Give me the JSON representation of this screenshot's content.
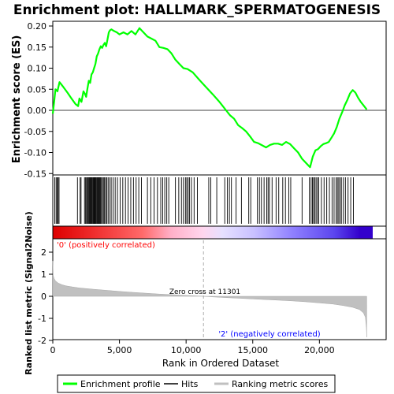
{
  "chart_data": [
    {
      "type": "line",
      "title": "Enrichment plot: HALLMARK_SPERMATOGENESIS",
      "ylabel": "Enrichment score (ES)",
      "ylim": [
        -0.15,
        0.21
      ],
      "yticks": [
        0.2,
        0.15,
        0.1,
        0.05,
        0.0,
        -0.05,
        -0.1,
        -0.15
      ],
      "ytick_labels": [
        "0.20",
        "0.15",
        "0.10",
        "0.05",
        "0.00",
        "-0.05",
        "-0.10",
        "-0.15"
      ],
      "xlim": [
        0,
        24000
      ],
      "series": [
        {
          "name": "Enrichment profile",
          "color": "#00ff00",
          "x": [
            0,
            100,
            200,
            350,
            500,
            800,
            1100,
            1400,
            1700,
            1900,
            2000,
            2150,
            2300,
            2400,
            2500,
            2600,
            2700,
            2800,
            2900,
            3000,
            3100,
            3200,
            3300,
            3400,
            3500,
            3600,
            3700,
            3800,
            3900,
            4000,
            4100,
            4200,
            4300,
            4400,
            4600,
            4800,
            5000,
            5300,
            5600,
            5900,
            6200,
            6500,
            6800,
            7100,
            7400,
            7700,
            8000,
            8300,
            8600,
            8900,
            9200,
            9500,
            9800,
            10100,
            10500,
            11000,
            11500,
            12000,
            12500,
            13000,
            13300,
            13600,
            13900,
            14200,
            14500,
            14800,
            15100,
            15400,
            15700,
            16000,
            16300,
            16600,
            16900,
            17200,
            17500,
            17800,
            18100,
            18400,
            18700,
            19000,
            19300,
            19500,
            19700,
            19900,
            20100,
            20300,
            20500,
            20700,
            20900,
            21100,
            21300,
            21500,
            21700,
            21900,
            22100,
            22300,
            22500,
            22700,
            22900,
            23100,
            23300,
            23550
          ],
          "y": [
            -0.008,
            0.02,
            0.05,
            0.045,
            0.067,
            0.055,
            0.042,
            0.028,
            0.015,
            0.01,
            0.028,
            0.02,
            0.045,
            0.04,
            0.032,
            0.052,
            0.07,
            0.065,
            0.085,
            0.09,
            0.1,
            0.11,
            0.128,
            0.135,
            0.145,
            0.152,
            0.148,
            0.155,
            0.16,
            0.152,
            0.168,
            0.185,
            0.19,
            0.192,
            0.188,
            0.185,
            0.18,
            0.185,
            0.18,
            0.188,
            0.18,
            0.195,
            0.185,
            0.175,
            0.17,
            0.165,
            0.15,
            0.148,
            0.145,
            0.135,
            0.12,
            0.11,
            0.1,
            0.098,
            0.09,
            0.072,
            0.055,
            0.038,
            0.02,
            0.0,
            -0.012,
            -0.02,
            -0.035,
            -0.042,
            -0.05,
            -0.062,
            -0.075,
            -0.078,
            -0.083,
            -0.088,
            -0.082,
            -0.079,
            -0.079,
            -0.082,
            -0.075,
            -0.08,
            -0.09,
            -0.1,
            -0.115,
            -0.125,
            -0.135,
            -0.11,
            -0.095,
            -0.092,
            -0.085,
            -0.08,
            -0.078,
            -0.075,
            -0.065,
            -0.055,
            -0.04,
            -0.02,
            -0.005,
            0.012,
            0.025,
            0.04,
            0.048,
            0.042,
            0.03,
            0.02,
            0.012,
            0.002
          ]
        }
      ]
    },
    {
      "type": "barcode",
      "name": "Hits",
      "hit_positions": [
        150,
        250,
        330,
        400,
        470,
        1850,
        2050,
        2120,
        2380,
        2460,
        2530,
        2590,
        2650,
        2710,
        2760,
        2810,
        2870,
        2920,
        2970,
        3030,
        3080,
        3130,
        3190,
        3240,
        3300,
        3350,
        3400,
        3460,
        3520,
        3580,
        3650,
        3720,
        3800,
        3880,
        3960,
        4050,
        4150,
        4260,
        4380,
        4520,
        4680,
        4850,
        5050,
        5250,
        5450,
        5650,
        5850,
        6050,
        6250,
        6450,
        6650,
        7100,
        7350,
        7600,
        7850,
        8100,
        8250,
        8400,
        8550,
        8700,
        9200,
        9450,
        9650,
        9800,
        9950,
        10050,
        10150,
        10250,
        10400,
        10600,
        10850,
        11700,
        11850,
        12300,
        12900,
        13100,
        13250,
        13400,
        13750,
        14150,
        14700,
        14850,
        15350,
        15500,
        15650,
        15850,
        16050,
        16150,
        16250,
        16450,
        16750,
        16950,
        17250,
        17450,
        17700,
        17850,
        18700,
        19250,
        19380,
        19480,
        19560,
        19650,
        19750,
        19850,
        19950,
        20150,
        20350,
        20550,
        20750,
        20950,
        21100,
        21250,
        21350,
        21450,
        21550,
        21650,
        21800,
        21950,
        22150,
        22350,
        22550
      ]
    },
    {
      "type": "area",
      "name": "Ranking metric scores",
      "ylabel": "Ranked list metric (Signal2Noise)",
      "xlabel": "Rank in Ordered Dataset",
      "ylim": [
        -2,
        2.2
      ],
      "yticks": [
        2,
        1,
        0,
        -1,
        -2
      ],
      "xlim": [
        0,
        24000
      ],
      "xticks": [
        0,
        5000,
        10000,
        15000,
        20000
      ],
      "xtick_labels": [
        "0",
        "5,000",
        "10,000",
        "15,000",
        "20,000"
      ],
      "color": "#c0c0c0",
      "x": [
        0,
        30,
        100,
        200,
        400,
        700,
        1000,
        1500,
        2000,
        3000,
        4000,
        5000,
        6000,
        7000,
        8000,
        9000,
        10000,
        11000,
        11301,
        12000,
        13000,
        14000,
        15000,
        16000,
        17000,
        18000,
        19000,
        20000,
        21000,
        21800,
        22500,
        23000,
        23300,
        23450,
        23520,
        23550
      ],
      "y": [
        1.6,
        0.95,
        0.8,
        0.7,
        0.6,
        0.52,
        0.47,
        0.42,
        0.38,
        0.32,
        0.27,
        0.22,
        0.18,
        0.14,
        0.1,
        0.07,
        0.04,
        0.01,
        0.0,
        -0.03,
        -0.06,
        -0.09,
        -0.12,
        -0.15,
        -0.18,
        -0.21,
        -0.25,
        -0.3,
        -0.35,
        -0.42,
        -0.5,
        -0.6,
        -0.75,
        -0.95,
        -1.4,
        -1.85
      ],
      "annotations": {
        "zero_cross": "Zero cross at 11301",
        "pos_label": "'0' (positively correlated)",
        "neg_label": "'2' (negatively correlated)"
      },
      "zero_cross_x": 11301
    }
  ],
  "legend": {
    "items": [
      {
        "label": "Enrichment profile",
        "color": "#00ff00"
      },
      {
        "label": "Hits",
        "color": "#000000"
      },
      {
        "label": "Ranking metric scores",
        "color": "#c0c0c0"
      }
    ]
  },
  "colors": {
    "positive_label": "#ff0000",
    "negative_label": "#0000ff",
    "heatbar_start": "#dd0000",
    "heatbar_mid": "#ffc8e8",
    "heatbar_end": "#3300cc"
  }
}
